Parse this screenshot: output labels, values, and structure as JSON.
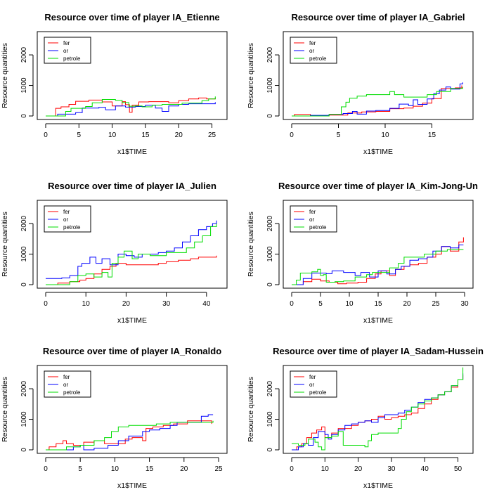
{
  "chart_data": [
    {
      "type": "line",
      "step": true,
      "title": "Resource over time of player IA_Etienne",
      "xlabel": "x1$TIME",
      "ylabel": "Resource quantities",
      "xlim": [
        0,
        26
      ],
      "ylim": [
        0,
        2600
      ],
      "xticks": [
        0,
        5,
        10,
        15,
        20,
        25
      ],
      "yticks": [
        0,
        1000,
        2000
      ],
      "legend": "top-left",
      "grid": false,
      "series": [
        {
          "name": "fer",
          "color": "#ff0000",
          "x": [
            0,
            1.5,
            2.3,
            3.5,
            4.5,
            6.5,
            8.5,
            10,
            11.5,
            12,
            12.6,
            13,
            14,
            15.5,
            17,
            18.5,
            20,
            21.5,
            23,
            24.2,
            25.5
          ],
          "y": [
            0,
            250,
            300,
            380,
            480,
            520,
            460,
            330,
            470,
            370,
            120,
            350,
            460,
            470,
            470,
            430,
            500,
            560,
            590,
            560,
            600
          ]
        },
        {
          "name": "or",
          "color": "#0000ff",
          "x": [
            0,
            1.8,
            4.5,
            5.5,
            8,
            9,
            10.5,
            12,
            13.5,
            15,
            16.5,
            17.5,
            18.5,
            20,
            21.5,
            23,
            24.5,
            25.5
          ],
          "y": [
            0,
            60,
            110,
            260,
            280,
            200,
            330,
            290,
            310,
            350,
            260,
            150,
            330,
            380,
            400,
            400,
            400,
            450
          ]
        },
        {
          "name": "petrole",
          "color": "#00dd00",
          "x": [
            0,
            3,
            3.8,
            6,
            7,
            8.5,
            10.5,
            11.5,
            12.5,
            13.5,
            14.5,
            16,
            17.5,
            19,
            20.5,
            22,
            23.5,
            24.5,
            25.5
          ],
          "y": [
            0,
            150,
            250,
            310,
            430,
            540,
            510,
            440,
            320,
            330,
            300,
            350,
            380,
            380,
            420,
            420,
            500,
            560,
            640
          ]
        }
      ]
    },
    {
      "type": "line",
      "step": true,
      "title": "Resource over time of player IA_Gabriel",
      "xlabel": "x1$TIME",
      "ylabel": "Resource quantities",
      "xlim": [
        0,
        18.5
      ],
      "ylim": [
        0,
        2600
      ],
      "xticks": [
        0,
        5,
        10,
        15
      ],
      "yticks": [
        0,
        1000,
        2000
      ],
      "legend": "top-left",
      "grid": false,
      "series": [
        {
          "name": "fer",
          "color": "#ff0000",
          "x": [
            0,
            0.3,
            2,
            4,
            6,
            7.5,
            9,
            10.5,
            12,
            13,
            14,
            15,
            16,
            17.5,
            18.2
          ],
          "y": [
            0,
            50,
            0,
            30,
            100,
            130,
            150,
            240,
            260,
            320,
            420,
            570,
            900,
            920,
            1000
          ]
        },
        {
          "name": "or",
          "color": "#0000ff",
          "x": [
            0,
            2,
            4,
            5.5,
            6.5,
            7,
            8,
            9,
            10.5,
            11.5,
            12.5,
            13,
            13.5,
            14.5,
            15.2,
            15.8,
            16.5,
            17,
            18,
            18.3
          ],
          "y": [
            0,
            20,
            50,
            80,
            150,
            60,
            160,
            180,
            250,
            390,
            340,
            530,
            380,
            560,
            730,
            850,
            950,
            880,
            1050,
            1100
          ]
        },
        {
          "name": "petrole",
          "color": "#00dd00",
          "x": [
            0,
            4,
            5.3,
            5.8,
            6.2,
            7,
            8,
            9.5,
            10.5,
            11,
            12,
            13.5,
            14.5,
            15.5,
            17,
            18.3
          ],
          "y": [
            0,
            50,
            300,
            450,
            580,
            650,
            700,
            700,
            800,
            700,
            620,
            620,
            700,
            800,
            900,
            950
          ]
        }
      ]
    },
    {
      "type": "line",
      "step": true,
      "title": "Resource over time of player IA_Julien",
      "xlabel": "x1$TIME",
      "ylabel": "Resource quantities",
      "xlim": [
        0,
        43
      ],
      "ylim": [
        0,
        2600
      ],
      "xticks": [
        0,
        10,
        20,
        30,
        40
      ],
      "yticks": [
        0,
        1000,
        2000
      ],
      "legend": "top-left",
      "grid": false,
      "series": [
        {
          "name": "fer",
          "color": "#ff0000",
          "x": [
            0,
            3,
            6,
            8.5,
            10,
            12,
            14,
            16,
            17.5,
            20,
            24,
            28,
            30,
            33,
            36,
            38,
            40,
            42.5
          ],
          "y": [
            0,
            50,
            100,
            150,
            200,
            350,
            500,
            600,
            700,
            650,
            650,
            700,
            750,
            800,
            850,
            900,
            900,
            950
          ]
        },
        {
          "name": "or",
          "color": "#0000ff",
          "x": [
            0,
            4,
            6,
            8,
            9,
            11,
            12.5,
            14,
            16,
            18,
            20,
            22,
            24,
            26,
            28,
            30,
            32,
            34,
            36,
            38,
            40,
            41.5,
            42.5
          ],
          "y": [
            200,
            220,
            300,
            600,
            700,
            900,
            700,
            850,
            650,
            1000,
            950,
            900,
            1000,
            1000,
            1050,
            1100,
            1200,
            1400,
            1600,
            1800,
            1900,
            2000,
            2100
          ]
        },
        {
          "name": "petrole",
          "color": "#00dd00",
          "x": [
            0,
            6,
            8,
            10,
            12,
            14,
            15.5,
            16.5,
            18,
            19.5,
            21.5,
            23,
            26,
            28,
            30,
            32,
            35,
            37,
            39,
            41,
            42.5
          ],
          "y": [
            0,
            100,
            300,
            350,
            250,
            400,
            250,
            700,
            900,
            1100,
            850,
            1000,
            950,
            950,
            1050,
            1050,
            1200,
            1400,
            1600,
            1900,
            2000
          ]
        }
      ]
    },
    {
      "type": "line",
      "step": true,
      "title": "Resource over time of player IA_Kim-Jong-Un",
      "xlabel": "x1$TIME",
      "ylabel": "Resource quantities",
      "xlim": [
        0,
        30
      ],
      "ylim": [
        0,
        2600
      ],
      "xticks": [
        0,
        5,
        10,
        15,
        20,
        25,
        30
      ],
      "yticks": [
        0,
        1000,
        2000
      ],
      "legend": "top-left",
      "grid": false,
      "series": [
        {
          "name": "fer",
          "color": "#ff0000",
          "x": [
            0,
            2,
            3.5,
            5,
            6.5,
            8,
            9.5,
            11.5,
            13,
            14.5,
            15.5,
            17,
            18,
            19.5,
            20.5,
            22,
            23.5,
            25,
            26,
            27.5,
            29,
            29.8
          ],
          "y": [
            0,
            100,
            180,
            120,
            80,
            30,
            50,
            80,
            200,
            350,
            450,
            300,
            500,
            600,
            650,
            700,
            900,
            1000,
            1250,
            1100,
            1400,
            1550
          ]
        },
        {
          "name": "or",
          "color": "#0000ff",
          "x": [
            0,
            2,
            3.5,
            6,
            7,
            9,
            11,
            12,
            13.5,
            15,
            16.5,
            18,
            19,
            20.5,
            22,
            23.5,
            24.5,
            26,
            27.5,
            29,
            29.8
          ],
          "y": [
            0,
            200,
            380,
            360,
            450,
            400,
            300,
            400,
            250,
            450,
            350,
            500,
            600,
            800,
            850,
            900,
            1100,
            1250,
            1200,
            1300,
            1300
          ]
        },
        {
          "name": "petrole",
          "color": "#00dd00",
          "x": [
            0,
            0.8,
            1.5,
            3.5,
            4.5,
            5,
            5.5,
            6,
            7.5,
            9,
            11,
            13,
            14,
            16,
            17,
            18.5,
            19.5,
            21,
            23,
            25,
            27,
            29.8
          ],
          "y": [
            0,
            150,
            380,
            420,
            500,
            300,
            330,
            80,
            100,
            120,
            250,
            330,
            400,
            400,
            550,
            700,
            900,
            900,
            1000,
            1100,
            1150,
            1150
          ]
        }
      ]
    },
    {
      "type": "line",
      "step": true,
      "title": "Resource over time of player IA_Ronaldo",
      "xlabel": "x1$TIME",
      "ylabel": "Resource quantities",
      "xlim": [
        0,
        25
      ],
      "ylim": [
        0,
        2600
      ],
      "xticks": [
        0,
        5,
        10,
        15,
        20,
        25
      ],
      "yticks": [
        0,
        1000,
        2000
      ],
      "legend": "top-left",
      "grid": false,
      "series": [
        {
          "name": "fer",
          "color": "#ff0000",
          "x": [
            0,
            0.5,
            1.5,
            2.5,
            3,
            4,
            5.5,
            7,
            8.5,
            10,
            11.5,
            12.5,
            14,
            14.5,
            15.5,
            17,
            18.5,
            20.5,
            22,
            23.5,
            24
          ],
          "y": [
            0,
            100,
            200,
            300,
            200,
            150,
            250,
            300,
            200,
            200,
            350,
            400,
            300,
            700,
            750,
            800,
            850,
            950,
            950,
            950,
            850
          ]
        },
        {
          "name": "or",
          "color": "#0000ff",
          "x": [
            0,
            4,
            5,
            5.5,
            7,
            9,
            10.5,
            12,
            14,
            15,
            16.5,
            18,
            19,
            21,
            22.5,
            23.5,
            24.2
          ],
          "y": [
            0,
            100,
            150,
            0,
            50,
            150,
            300,
            450,
            600,
            650,
            700,
            800,
            900,
            900,
            1100,
            1150,
            1150
          ]
        },
        {
          "name": "petrole",
          "color": "#00dd00",
          "x": [
            0,
            3,
            5,
            7,
            8.5,
            9.5,
            10.5,
            12,
            13,
            14.5,
            16,
            18,
            20,
            22,
            23.5,
            24.2
          ],
          "y": [
            0,
            100,
            150,
            300,
            400,
            600,
            750,
            800,
            800,
            800,
            850,
            900,
            900,
            900,
            900,
            950
          ]
        }
      ]
    },
    {
      "type": "line",
      "step": true,
      "title": "Resource over time of player IA_Sadam-Hussein",
      "xlabel": "x1$TIME",
      "ylabel": "Resource quantities",
      "xlim": [
        0,
        52
      ],
      "ylim": [
        0,
        2600
      ],
      "xticks": [
        0,
        10,
        20,
        30,
        40,
        50
      ],
      "yticks": [
        0,
        1000,
        2000
      ],
      "legend": "top-left",
      "grid": false,
      "series": [
        {
          "name": "fer",
          "color": "#ff0000",
          "x": [
            0,
            1.5,
            3,
            4.5,
            6,
            7.5,
            9,
            10,
            12,
            14,
            16,
            18,
            20,
            22,
            24,
            26,
            28,
            30,
            32,
            34,
            36,
            38,
            40,
            42,
            44,
            46,
            48,
            50,
            51.5
          ],
          "y": [
            0,
            100,
            200,
            400,
            550,
            650,
            750,
            400,
            550,
            700,
            700,
            800,
            900,
            950,
            1000,
            1100,
            1000,
            1050,
            1100,
            1150,
            1200,
            1350,
            1500,
            1650,
            1800,
            1900,
            2050,
            2300,
            2450
          ]
        },
        {
          "name": "or",
          "color": "#0000ff",
          "x": [
            0,
            2,
            3.5,
            5,
            6.5,
            8,
            10,
            11,
            12,
            14,
            16,
            18,
            20,
            22,
            24,
            26,
            28,
            30,
            32,
            34,
            36,
            38,
            40,
            42,
            44,
            46,
            48,
            50,
            51.5
          ],
          "y": [
            0,
            100,
            200,
            150,
            400,
            600,
            500,
            350,
            500,
            650,
            800,
            850,
            900,
            950,
            900,
            1050,
            1150,
            1150,
            1200,
            1300,
            1400,
            1550,
            1650,
            1700,
            1800,
            1900,
            2100,
            2300,
            2500
          ]
        },
        {
          "name": "petrole",
          "color": "#00dd00",
          "x": [
            0,
            2,
            4,
            5,
            7,
            8,
            9,
            10,
            12,
            14,
            15.5,
            17,
            18,
            19.5,
            22,
            23,
            24,
            26,
            28,
            30,
            32,
            33,
            34.5,
            36,
            38,
            40,
            42,
            44,
            46,
            48,
            50,
            51.5
          ],
          "y": [
            200,
            150,
            200,
            350,
            250,
            100,
            0,
            400,
            450,
            600,
            150,
            150,
            150,
            150,
            100,
            300,
            500,
            550,
            550,
            550,
            700,
            1000,
            1250,
            1400,
            1500,
            1600,
            1700,
            1800,
            1900,
            2100,
            2300,
            2700
          ]
        }
      ]
    }
  ]
}
